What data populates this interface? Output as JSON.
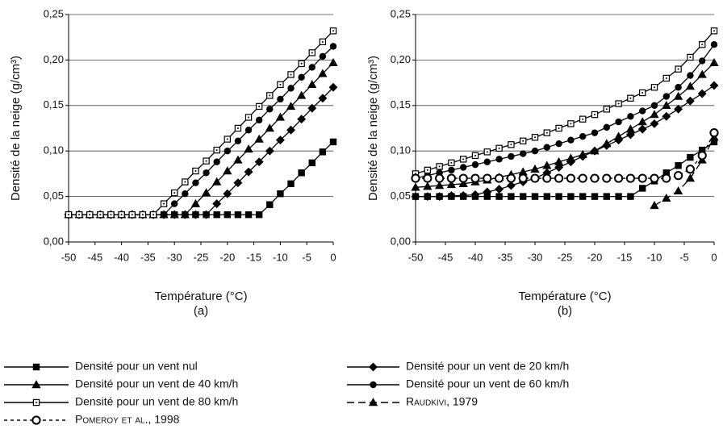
{
  "chart_data": [
    {
      "type": "line",
      "subtitle": "(a)",
      "xlabel": "Température (°C)",
      "ylabel": "Densité de la neige (g/cm³)",
      "x": [
        -50,
        -48,
        -46,
        -44,
        -42,
        -40,
        -38,
        -36,
        -34,
        -32,
        -30,
        -28,
        -26,
        -24,
        -22,
        -20,
        -18,
        -16,
        -14,
        -12,
        -10,
        -8,
        -6,
        -4,
        -2,
        0
      ],
      "xlim": [
        -50,
        0
      ],
      "xticks": [
        -50,
        -45,
        -40,
        -35,
        -30,
        -25,
        -20,
        -15,
        -10,
        -5,
        0
      ],
      "ylim": [
        0,
        0.25
      ],
      "yticks": [
        {
          "value": 0,
          "label": "0,00"
        },
        {
          "value": 0.05,
          "label": "0,05"
        },
        {
          "value": 0.1,
          "label": "0,10"
        },
        {
          "value": 0.15,
          "label": "0,15"
        },
        {
          "value": 0.2,
          "label": "0,20"
        },
        {
          "value": 0.25,
          "label": "0,25"
        }
      ],
      "grid": true,
      "series": [
        {
          "name": "Densité pour un vent nul",
          "color": "#000",
          "marker": "square",
          "dash": "solid",
          "values": [
            0.03,
            0.03,
            0.03,
            0.03,
            0.03,
            0.03,
            0.03,
            0.03,
            0.03,
            0.03,
            0.03,
            0.03,
            0.03,
            0.03,
            0.03,
            0.03,
            0.03,
            0.03,
            0.03,
            0.041,
            0.053,
            0.064,
            0.076,
            0.087,
            0.099,
            0.11
          ]
        },
        {
          "name": "Densité pour un vent de 20 km/h",
          "color": "#000",
          "marker": "diamond",
          "dash": "solid",
          "values": [
            0.03,
            0.03,
            0.03,
            0.03,
            0.03,
            0.03,
            0.03,
            0.03,
            0.03,
            0.03,
            0.03,
            0.03,
            0.03,
            0.03,
            0.042,
            0.053,
            0.065,
            0.077,
            0.088,
            0.1,
            0.112,
            0.123,
            0.135,
            0.147,
            0.158,
            0.17
          ]
        },
        {
          "name": "Densité pour un vent de 40 km/h",
          "color": "#000",
          "marker": "triangle",
          "dash": "solid",
          "values": [
            0.03,
            0.03,
            0.03,
            0.03,
            0.03,
            0.03,
            0.03,
            0.03,
            0.03,
            0.03,
            0.03,
            0.03,
            0.042,
            0.054,
            0.066,
            0.078,
            0.09,
            0.102,
            0.113,
            0.125,
            0.137,
            0.149,
            0.161,
            0.173,
            0.185,
            0.197
          ]
        },
        {
          "name": "Densité pour un vent de 60 km/h",
          "color": "#000",
          "marker": "circle",
          "dash": "solid",
          "values": [
            0.03,
            0.03,
            0.03,
            0.03,
            0.03,
            0.03,
            0.03,
            0.03,
            0.03,
            0.03,
            0.042,
            0.053,
            0.065,
            0.076,
            0.088,
            0.1,
            0.111,
            0.123,
            0.134,
            0.146,
            0.157,
            0.169,
            0.181,
            0.192,
            0.204,
            0.215
          ]
        },
        {
          "name": "Densité pour un vent de 80 km/h",
          "color": "#000",
          "marker": "open-square",
          "dash": "solid",
          "values": [
            0.03,
            0.03,
            0.03,
            0.03,
            0.03,
            0.03,
            0.03,
            0.03,
            0.03,
            0.042,
            0.054,
            0.066,
            0.078,
            0.089,
            0.101,
            0.113,
            0.125,
            0.137,
            0.149,
            0.161,
            0.173,
            0.184,
            0.196,
            0.208,
            0.22,
            0.232
          ]
        }
      ]
    },
    {
      "type": "line",
      "subtitle": "(b)",
      "xlabel": "Température (°C)",
      "ylabel": "Densité de la neige (g/cm³)",
      "x": [
        -50,
        -48,
        -46,
        -44,
        -42,
        -40,
        -38,
        -36,
        -34,
        -32,
        -30,
        -28,
        -26,
        -24,
        -22,
        -20,
        -18,
        -16,
        -14,
        -12,
        -10,
        -8,
        -6,
        -4,
        -2,
        0
      ],
      "xlim": [
        -50,
        0
      ],
      "xticks": [
        -50,
        -45,
        -40,
        -35,
        -30,
        -25,
        -20,
        -15,
        -10,
        -5,
        0
      ],
      "ylim": [
        0,
        0.25
      ],
      "yticks": [
        {
          "value": 0,
          "label": "0,00"
        },
        {
          "value": 0.05,
          "label": "0,05"
        },
        {
          "value": 0.1,
          "label": "0,10"
        },
        {
          "value": 0.15,
          "label": "0,15"
        },
        {
          "value": 0.2,
          "label": "0,20"
        },
        {
          "value": 0.25,
          "label": "0,25"
        }
      ],
      "grid": true,
      "legend": "bottom",
      "series": [
        {
          "name": "Densité pour un vent nul",
          "color": "#000",
          "marker": "square",
          "dash": "solid",
          "values": [
            0.05,
            0.05,
            0.05,
            0.05,
            0.05,
            0.05,
            0.05,
            0.05,
            0.05,
            0.05,
            0.05,
            0.05,
            0.05,
            0.05,
            0.05,
            0.05,
            0.05,
            0.05,
            0.05,
            0.059,
            0.067,
            0.076,
            0.084,
            0.093,
            0.101,
            0.11
          ]
        },
        {
          "name": "Densité pour un vent de 20 km/h",
          "color": "#000",
          "marker": "diamond",
          "dash": "solid",
          "values": [
            0.05,
            0.05,
            0.05,
            0.051,
            0.051,
            0.052,
            0.055,
            0.058,
            0.062,
            0.066,
            0.07,
            0.076,
            0.082,
            0.088,
            0.094,
            0.1,
            0.106,
            0.112,
            0.118,
            0.124,
            0.13,
            0.138,
            0.146,
            0.155,
            0.163,
            0.172
          ]
        },
        {
          "name": "Densité pour un vent de 40 km/h",
          "color": "#000",
          "marker": "triangle",
          "dash": "solid",
          "values": [
            0.06,
            0.061,
            0.062,
            0.063,
            0.064,
            0.066,
            0.068,
            0.071,
            0.074,
            0.077,
            0.08,
            0.084,
            0.088,
            0.092,
            0.096,
            0.1,
            0.108,
            0.116,
            0.124,
            0.132,
            0.14,
            0.15,
            0.16,
            0.171,
            0.184,
            0.197
          ]
        },
        {
          "name": "Densité pour un vent de 60 km/h",
          "color": "#000",
          "marker": "circle",
          "dash": "solid",
          "values": [
            0.07,
            0.073,
            0.076,
            0.079,
            0.082,
            0.085,
            0.088,
            0.091,
            0.094,
            0.097,
            0.1,
            0.104,
            0.108,
            0.112,
            0.116,
            0.12,
            0.126,
            0.132,
            0.138,
            0.144,
            0.15,
            0.16,
            0.17,
            0.183,
            0.199,
            0.217
          ]
        },
        {
          "name": "Densité pour un vent de 80 km/h",
          "color": "#000",
          "marker": "open-square",
          "dash": "solid",
          "values": [
            0.075,
            0.079,
            0.083,
            0.087,
            0.091,
            0.095,
            0.099,
            0.103,
            0.107,
            0.111,
            0.115,
            0.12,
            0.125,
            0.13,
            0.135,
            0.14,
            0.146,
            0.152,
            0.158,
            0.164,
            0.17,
            0.18,
            0.19,
            0.203,
            0.217,
            0.232
          ]
        },
        {
          "name": "Raudkivi, 1979",
          "color": "#000",
          "marker": "triangle",
          "dash": "dashed",
          "values": [
            null,
            null,
            null,
            null,
            null,
            null,
            null,
            null,
            null,
            null,
            null,
            null,
            null,
            null,
            null,
            null,
            null,
            null,
            null,
            null,
            0.04,
            0.048,
            0.056,
            0.07,
            0.09,
            0.115
          ]
        },
        {
          "name": "Pomeroy et al., 1998",
          "color": "#000",
          "marker": "open-circle",
          "dash": "dotted",
          "values": [
            0.07,
            0.07,
            0.07,
            0.07,
            0.07,
            0.07,
            0.07,
            0.07,
            0.07,
            0.07,
            0.07,
            0.07,
            0.07,
            0.07,
            0.07,
            0.07,
            0.07,
            0.07,
            0.07,
            0.07,
            0.07,
            0.07,
            0.073,
            0.08,
            0.095,
            0.12
          ]
        }
      ]
    }
  ]
}
